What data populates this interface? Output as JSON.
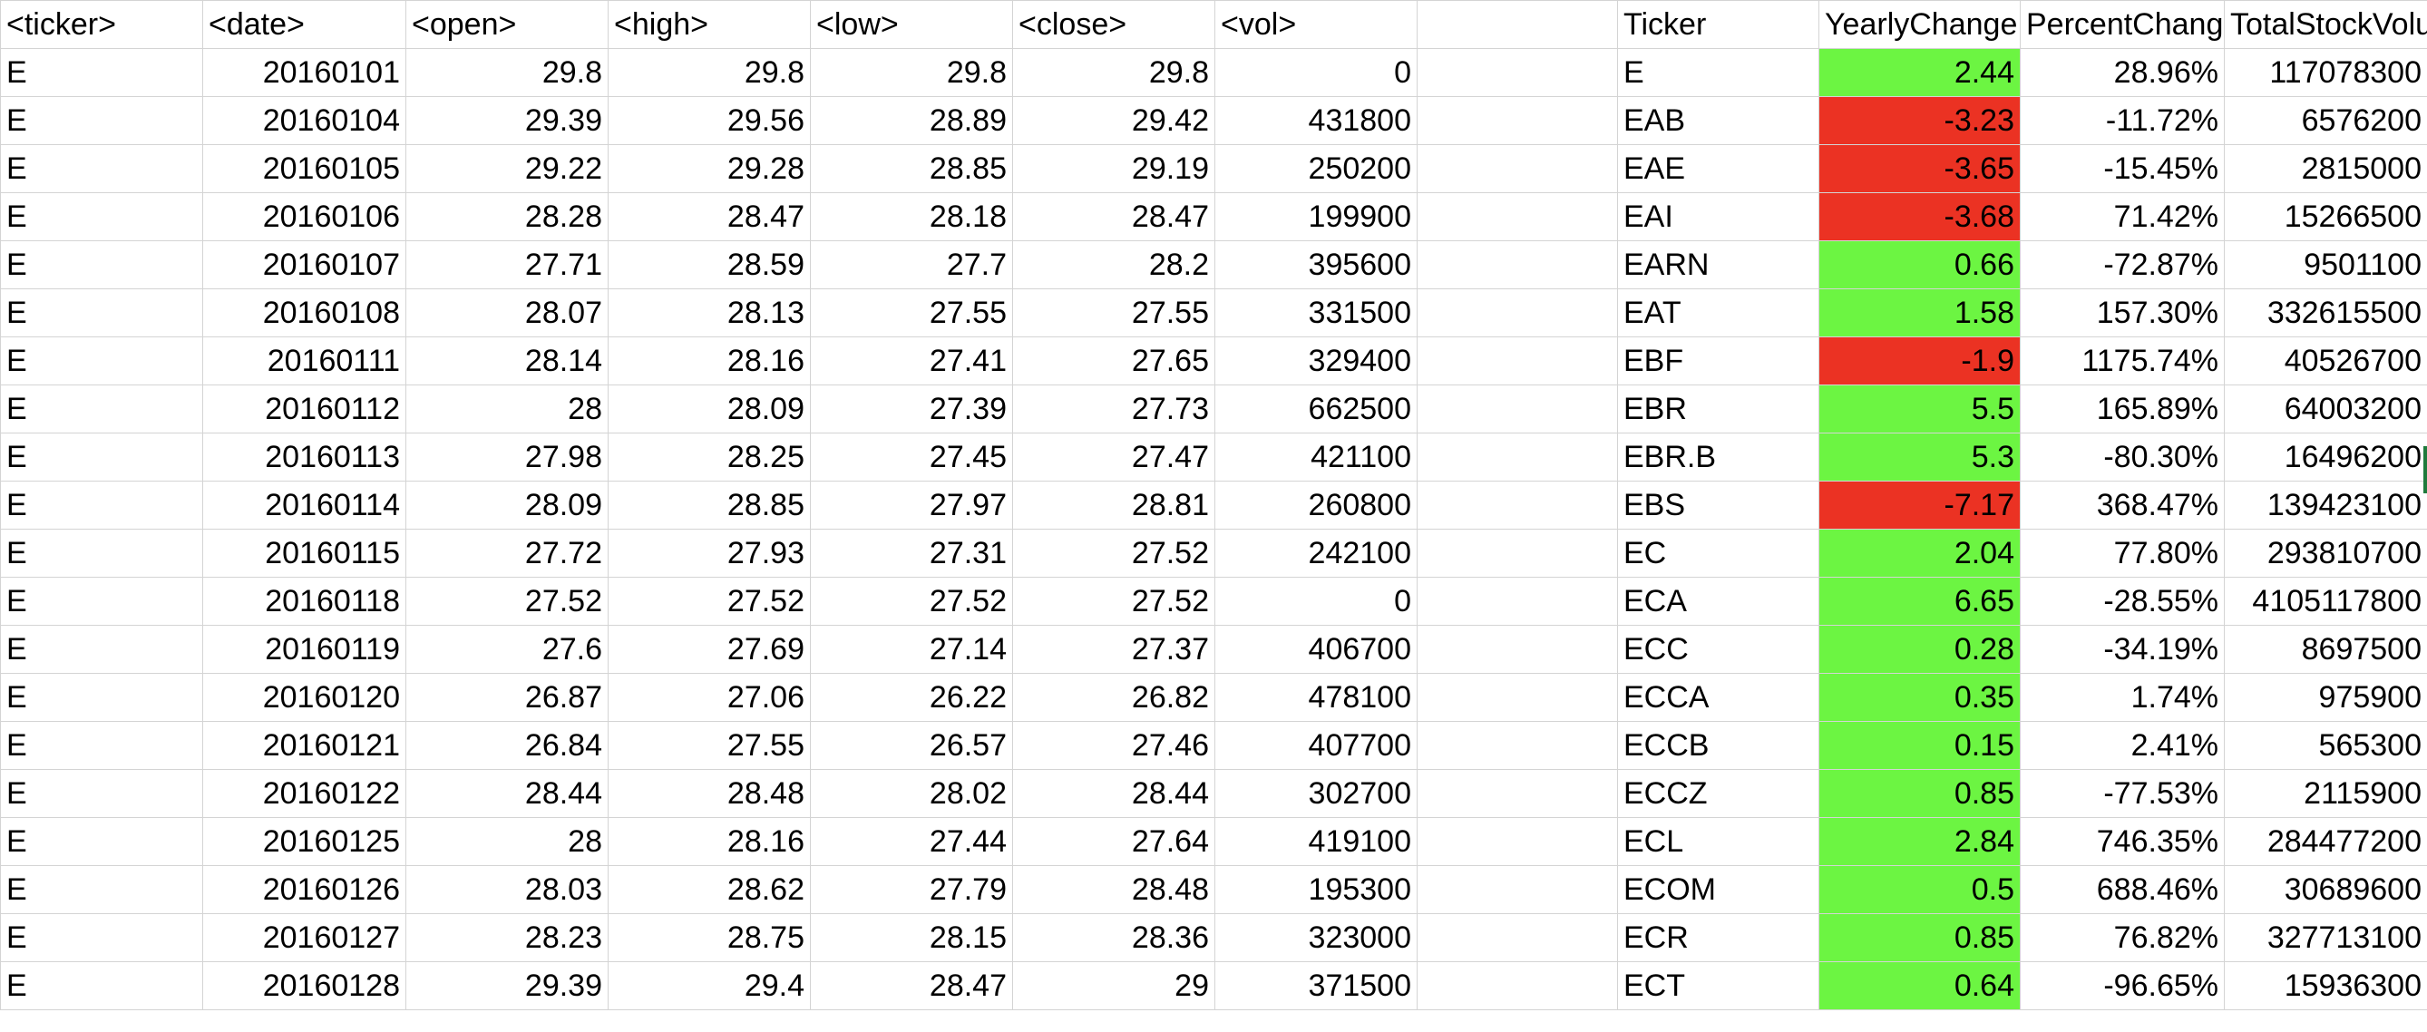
{
  "headers": [
    "<ticker>",
    "<date>",
    "<open>",
    "<high>",
    "<low>",
    "<close>",
    "<vol>",
    "",
    "Ticker",
    "YearlyChange",
    "PercentChange",
    "TotalStockVolume"
  ],
  "raw_rows": [
    [
      "E",
      "20160101",
      "29.8",
      "29.8",
      "29.8",
      "29.8",
      "0"
    ],
    [
      "E",
      "20160104",
      "29.39",
      "29.56",
      "28.89",
      "29.42",
      "431800"
    ],
    [
      "E",
      "20160105",
      "29.22",
      "29.28",
      "28.85",
      "29.19",
      "250200"
    ],
    [
      "E",
      "20160106",
      "28.28",
      "28.47",
      "28.18",
      "28.47",
      "199900"
    ],
    [
      "E",
      "20160107",
      "27.71",
      "28.59",
      "27.7",
      "28.2",
      "395600"
    ],
    [
      "E",
      "20160108",
      "28.07",
      "28.13",
      "27.55",
      "27.55",
      "331500"
    ],
    [
      "E",
      "20160111",
      "28.14",
      "28.16",
      "27.41",
      "27.65",
      "329400"
    ],
    [
      "E",
      "20160112",
      "28",
      "28.09",
      "27.39",
      "27.73",
      "662500"
    ],
    [
      "E",
      "20160113",
      "27.98",
      "28.25",
      "27.45",
      "27.47",
      "421100"
    ],
    [
      "E",
      "20160114",
      "28.09",
      "28.85",
      "27.97",
      "28.81",
      "260800"
    ],
    [
      "E",
      "20160115",
      "27.72",
      "27.93",
      "27.31",
      "27.52",
      "242100"
    ],
    [
      "E",
      "20160118",
      "27.52",
      "27.52",
      "27.52",
      "27.52",
      "0"
    ],
    [
      "E",
      "20160119",
      "27.6",
      "27.69",
      "27.14",
      "27.37",
      "406700"
    ],
    [
      "E",
      "20160120",
      "26.87",
      "27.06",
      "26.22",
      "26.82",
      "478100"
    ],
    [
      "E",
      "20160121",
      "26.84",
      "27.55",
      "26.57",
      "27.46",
      "407700"
    ],
    [
      "E",
      "20160122",
      "28.44",
      "28.48",
      "28.02",
      "28.44",
      "302700"
    ],
    [
      "E",
      "20160125",
      "28",
      "28.16",
      "27.44",
      "27.64",
      "419100"
    ],
    [
      "E",
      "20160126",
      "28.03",
      "28.62",
      "27.79",
      "28.48",
      "195300"
    ],
    [
      "E",
      "20160127",
      "28.23",
      "28.75",
      "28.15",
      "28.36",
      "323000"
    ],
    [
      "E",
      "20160128",
      "29.39",
      "29.4",
      "28.47",
      "29",
      "371500"
    ]
  ],
  "summary_rows": [
    {
      "ticker": "E",
      "yearly_change": "2.44",
      "percent_change": "28.96%",
      "total_volume": "117078300",
      "status": "positive"
    },
    {
      "ticker": "EAB",
      "yearly_change": "-3.23",
      "percent_change": "-11.72%",
      "total_volume": "6576200",
      "status": "negative"
    },
    {
      "ticker": "EAE",
      "yearly_change": "-3.65",
      "percent_change": "-15.45%",
      "total_volume": "2815000",
      "status": "negative"
    },
    {
      "ticker": "EAI",
      "yearly_change": "-3.68",
      "percent_change": "71.42%",
      "total_volume": "15266500",
      "status": "negative"
    },
    {
      "ticker": "EARN",
      "yearly_change": "0.66",
      "percent_change": "-72.87%",
      "total_volume": "9501100",
      "status": "positive"
    },
    {
      "ticker": "EAT",
      "yearly_change": "1.58",
      "percent_change": "157.30%",
      "total_volume": "332615500",
      "status": "positive"
    },
    {
      "ticker": "EBF",
      "yearly_change": "-1.9",
      "percent_change": "1175.74%",
      "total_volume": "40526700",
      "status": "negative"
    },
    {
      "ticker": "EBR",
      "yearly_change": "5.5",
      "percent_change": "165.89%",
      "total_volume": "64003200",
      "status": "positive"
    },
    {
      "ticker": "EBR.B",
      "yearly_change": "5.3",
      "percent_change": "-80.30%",
      "total_volume": "16496200",
      "status": "positive"
    },
    {
      "ticker": "EBS",
      "yearly_change": "-7.17",
      "percent_change": "368.47%",
      "total_volume": "139423100",
      "status": "negative"
    },
    {
      "ticker": "EC",
      "yearly_change": "2.04",
      "percent_change": "77.80%",
      "total_volume": "293810700",
      "status": "positive"
    },
    {
      "ticker": "ECA",
      "yearly_change": "6.65",
      "percent_change": "-28.55%",
      "total_volume": "4105117800",
      "status": "positive"
    },
    {
      "ticker": "ECC",
      "yearly_change": "0.28",
      "percent_change": "-34.19%",
      "total_volume": "8697500",
      "status": "positive"
    },
    {
      "ticker": "ECCA",
      "yearly_change": "0.35",
      "percent_change": "1.74%",
      "total_volume": "975900",
      "status": "positive"
    },
    {
      "ticker": "ECCB",
      "yearly_change": "0.15",
      "percent_change": "2.41%",
      "total_volume": "565300",
      "status": "positive"
    },
    {
      "ticker": "ECCZ",
      "yearly_change": "0.85",
      "percent_change": "-77.53%",
      "total_volume": "2115900",
      "status": "positive"
    },
    {
      "ticker": "ECL",
      "yearly_change": "2.84",
      "percent_change": "746.35%",
      "total_volume": "284477200",
      "status": "positive"
    },
    {
      "ticker": "ECOM",
      "yearly_change": "0.5",
      "percent_change": "688.46%",
      "total_volume": "30689600",
      "status": "positive"
    },
    {
      "ticker": "ECR",
      "yearly_change": "0.85",
      "percent_change": "76.82%",
      "total_volume": "327713100",
      "status": "positive"
    },
    {
      "ticker": "ECT",
      "yearly_change": "0.64",
      "percent_change": "-96.65%",
      "total_volume": "15936300",
      "status": "positive"
    }
  ],
  "colors": {
    "positive": "#6cf542",
    "negative": "#eb3223",
    "gridline": "#d4d4d4"
  }
}
